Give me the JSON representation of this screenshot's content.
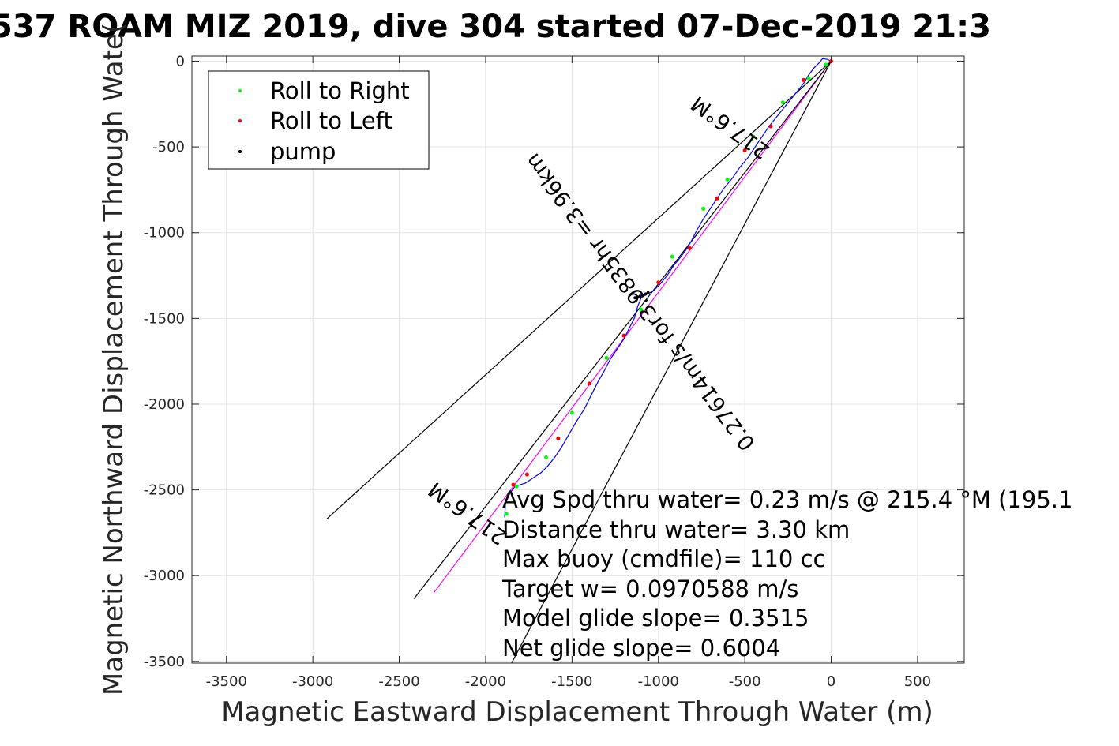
{
  "chart_data": {
    "type": "line",
    "title": "537 ROAM MIZ 2019, dive 304 started 07-Dec-2019 21:3",
    "xlabel": "Magnetic Eastward Displacement Through Water (m)",
    "ylabel": "Magnetic Northward Displacement Through Wate(",
    "xlim": [
      -3700,
      770
    ],
    "ylim": [
      -3510,
      30
    ],
    "xticks": [
      -3500,
      -3000,
      -2500,
      -2000,
      -1500,
      -1000,
      -500,
      0,
      500
    ],
    "yticks": [
      0,
      -500,
      -1000,
      -1500,
      -2000,
      -2500,
      -3000,
      -3500
    ],
    "grid": true,
    "legend_position": "top-left",
    "legend": [
      {
        "label": "Roll to Right",
        "color": "#00ff00"
      },
      {
        "label": "Roll to Left",
        "color": "#ff0000"
      },
      {
        "label": "pump",
        "color": "#000000"
      }
    ],
    "track": {
      "color": "#0000ff",
      "x": [
        0,
        -20,
        -50,
        -70,
        -100,
        -130,
        -160,
        -200,
        -240,
        -280,
        -320,
        -360,
        -400,
        -440,
        -480,
        -530,
        -570,
        -620,
        -660,
        -700,
        -740,
        -780,
        -810,
        -840,
        -870,
        -910,
        -950,
        -990,
        -1030,
        -1070,
        -1100,
        -1120,
        -1140,
        -1170,
        -1200,
        -1240,
        -1280,
        -1310,
        -1350,
        -1390,
        -1430,
        -1480,
        -1520,
        -1560,
        -1600,
        -1640,
        -1680,
        -1710,
        -1740,
        -1770,
        -1800,
        -1830,
        -1860,
        -1885,
        -1890
      ],
      "y": [
        0,
        10,
        15,
        -10,
        -40,
        -80,
        -130,
        -180,
        -230,
        -280,
        -330,
        -380,
        -440,
        -500,
        -560,
        -620,
        -680,
        -740,
        -800,
        -860,
        -920,
        -990,
        -1050,
        -1100,
        -1140,
        -1190,
        -1250,
        -1300,
        -1340,
        -1360,
        -1380,
        -1430,
        -1500,
        -1560,
        -1620,
        -1680,
        -1740,
        -1800,
        -1870,
        -1950,
        -2030,
        -2110,
        -2180,
        -2250,
        -2310,
        -2360,
        -2400,
        -2420,
        -2440,
        -2460,
        -2470,
        -2480,
        -2520,
        -2580,
        -2660
      ]
    },
    "roll_right": {
      "color": "#00ff00",
      "x": [
        -30,
        -130,
        -280,
        -450,
        -600,
        -740,
        -920,
        -1100,
        -1300,
        -1500,
        -1650,
        -1820,
        -1880
      ],
      "y": [
        -20,
        -100,
        -240,
        -440,
        -690,
        -860,
        -1140,
        -1450,
        -1730,
        -2050,
        -2310,
        -2480,
        -2640
      ]
    },
    "roll_left": {
      "color": "#ff0000",
      "x": [
        0,
        -160,
        -350,
        -500,
        -660,
        -820,
        -1000,
        -1200,
        -1400,
        -1580,
        -1760,
        -1840
      ],
      "y": [
        0,
        -110,
        -380,
        -520,
        -800,
        -1090,
        -1290,
        -1600,
        -1880,
        -2200,
        -2410,
        -2470
      ]
    },
    "pump": {
      "color": "#000000",
      "x": [
        -1060,
        -1075,
        -1090,
        -1105,
        -1120,
        -1135
      ],
      "y": [
        -1350,
        -1358,
        -1365,
        -1370,
        -1375,
        -1380
      ]
    },
    "lines": [
      {
        "name": "net",
        "color": "#ff00ff",
        "x": [
          0,
          -2300
        ],
        "y": [
          0,
          -3100
        ]
      },
      {
        "name": "hdg",
        "color": "#000000",
        "x": [
          0,
          -2415
        ],
        "y": [
          0,
          -3135
        ]
      },
      {
        "name": "wedge_left",
        "color": "#000000",
        "x": [
          0,
          -2920
        ],
        "y": [
          0,
          -2670
        ]
      },
      {
        "name": "wedge_right",
        "color": "#000000",
        "x": [
          0,
          -1850
        ],
        "y": [
          0,
          -3510
        ]
      }
    ],
    "rotated_labels": [
      {
        "text": "217.6°M",
        "x": -580,
        "y": -380,
        "rotation": 216
      },
      {
        "text": "0.27614m/s for3.9835hr =3.96km",
        "x": -1100,
        "y": -1400,
        "rotation": 233
      },
      {
        "text": "217.6°M",
        "x": -2100,
        "y": -2630,
        "rotation": 216
      }
    ],
    "annotations": [
      "Avg Spd thru water=  0.23 m/s @ 215.4 °M (195.1",
      "Distance thru water=  3.30 km",
      "Max buoy (cmdfile)= 110 cc",
      "Target w= 0.0970588 m/s",
      "Model glide slope= 0.3515",
      "Net glide slope= 0.6004"
    ]
  }
}
